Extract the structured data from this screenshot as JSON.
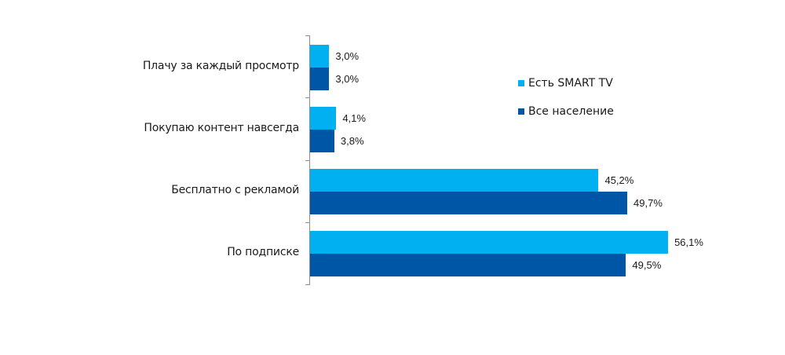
{
  "chart_data": {
    "type": "bar",
    "orientation": "horizontal",
    "title": "",
    "xlabel": "",
    "ylabel": "",
    "categories": [
      "Плачу за каждый просмотр",
      "Покупаю контент навсегда",
      "Бесплатно с рекламой",
      "По подписке"
    ],
    "series": [
      {
        "name": "Есть SMART TV",
        "color": "#00b0f0",
        "values": [
          3.0,
          4.1,
          45.2,
          56.1
        ],
        "labels": [
          "3,0%",
          "4,1%",
          "45,2%",
          "56,1%"
        ]
      },
      {
        "name": "Все население",
        "color": "#0056a6",
        "values": [
          3.0,
          3.8,
          49.7,
          49.5
        ],
        "labels": [
          "3,0%",
          "3,8%",
          "49,7%",
          "49,5%"
        ]
      }
    ],
    "grid": false,
    "legend_position": "right",
    "value_unit": "%"
  },
  "legend": {
    "items": [
      {
        "label": "Есть SMART TV",
        "color": "#00b0f0"
      },
      {
        "label": "Все население",
        "color": "#0056a6"
      }
    ]
  }
}
